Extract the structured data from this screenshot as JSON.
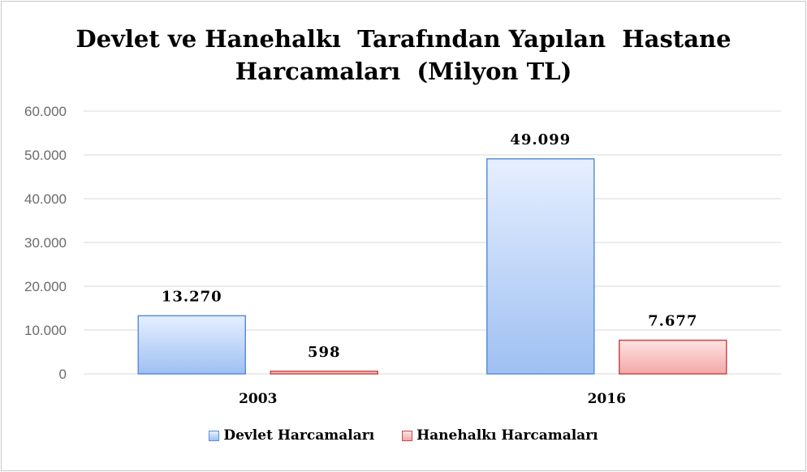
{
  "chart_data": {
    "type": "bar",
    "title": "Devlet ve Hanehalkı  Tarafından Yapılan  Hastane\nHarcamaları  (Milyon TL)",
    "title_lines": [
      "Devlet ve Hanehalkı  Tarafından Yapılan  Hastane",
      "Harcamaları  (Milyon TL)"
    ],
    "categories": [
      "2003",
      "2016"
    ],
    "series": [
      {
        "name": "Devlet Harcamaları",
        "values": [
          13270,
          49099
        ],
        "labels": [
          "13.270",
          "49.099"
        ],
        "color": "#5b8fd6",
        "fill_top": "#e6efff",
        "fill_bottom": "#9ec0f2"
      },
      {
        "name": "Hanehalkı Harcamaları",
        "values": [
          598,
          7677
        ],
        "labels": [
          "598",
          "7.677"
        ],
        "color": "#c84a4a",
        "fill_top": "#ffe3e3",
        "fill_bottom": "#f3a7a7"
      }
    ],
    "ylim": [
      0,
      60000
    ],
    "yticks": [
      0,
      10000,
      20000,
      30000,
      40000,
      50000,
      60000
    ],
    "ytick_labels": [
      "0",
      "10.000",
      "20.000",
      "30.000",
      "40.000",
      "50.000",
      "60.000"
    ],
    "grid": true,
    "legend_position": "bottom",
    "xlabel": "",
    "ylabel": ""
  }
}
